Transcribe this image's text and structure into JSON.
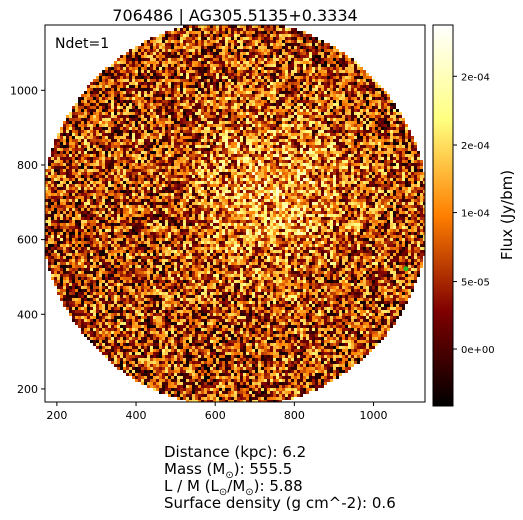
{
  "chart_data": {
    "type": "heatmap",
    "title": "706486 | AG305.5135+0.3334",
    "annotation": "Ndet=1",
    "x_ticks": [
      200,
      400,
      600,
      800,
      1000
    ],
    "y_ticks": [
      200,
      400,
      600,
      800,
      1000
    ],
    "xlim": [
      170,
      1130
    ],
    "ylim": [
      165,
      1175
    ],
    "aperture": {
      "center": [
        650,
        670
      ],
      "radius": 490
    },
    "marker": {
      "x": 1082,
      "y": 522,
      "color": "#22bb22"
    },
    "colorbar": {
      "label": "Flux (Jy/bm)",
      "tick_labels": [
        "2e-04",
        "2e-04",
        "1e-04",
        "5e-05",
        "0e+00"
      ],
      "tick_values": [
        0.000231,
        0.000172,
        0.000114,
        5.48e-05,
        -3.1e-06
      ],
      "range": [
        -5.2e-05,
        0.000275
      ],
      "colormap": "afmhot"
    },
    "colors": {
      "background": "#000000",
      "frame": "#000000"
    }
  },
  "source_info": {
    "distance": "Distance (kpc): 6.2",
    "mass_prefix": "Mass (M",
    "mass_suffix": "): 555.5",
    "lm_prefix": "L / M (L",
    "lm_middle": "/M",
    "lm_suffix": "): 5.88",
    "sun_symbol": "⊙",
    "surface_density": "Surface density (g cm^-2): 0.6"
  }
}
